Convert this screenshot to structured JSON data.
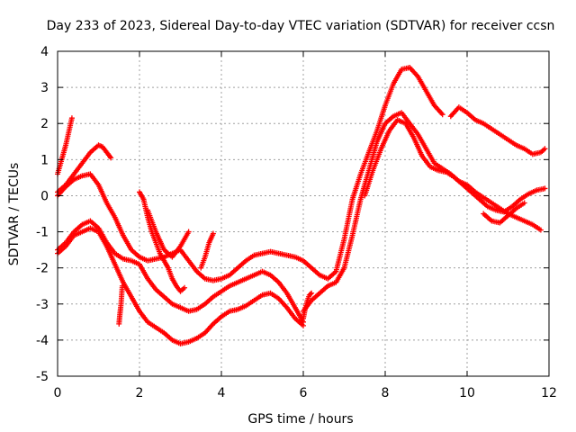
{
  "chart_data": {
    "type": "scatter",
    "title": "Day 233 of 2023, Sidereal Day-to-day VTEC variation (SDTVAR) for receiver ccsn",
    "xlabel": "GPS time / hours",
    "ylabel": "SDTVAR / TECUs",
    "xlim": [
      0,
      12
    ],
    "ylim": [
      -5,
      4
    ],
    "xticks": [
      0,
      2,
      4,
      6,
      8,
      10,
      12
    ],
    "yticks": [
      -5,
      -4,
      -3,
      -2,
      -1,
      0,
      1,
      2,
      3,
      4
    ],
    "grid": true,
    "marker": "plus",
    "color": "#ff0000",
    "series": [
      {
        "name": "trace-1",
        "x": [
          0.0,
          0.1,
          0.2,
          0.3,
          0.35
        ],
        "y": [
          0.6,
          1.0,
          1.4,
          1.9,
          2.15
        ]
      },
      {
        "name": "trace-2",
        "x": [
          0.0,
          0.2,
          0.4,
          0.6,
          0.8,
          1.0,
          1.1,
          1.2,
          1.3
        ],
        "y": [
          0.1,
          0.3,
          0.6,
          0.9,
          1.2,
          1.4,
          1.35,
          1.2,
          1.05
        ]
      },
      {
        "name": "trace-3",
        "x": [
          0.0,
          0.2,
          0.4,
          0.6,
          0.8,
          1.0,
          1.2,
          1.4,
          1.6,
          1.8,
          2.0,
          2.2,
          2.4,
          2.6,
          2.8,
          3.0,
          3.2,
          3.4,
          3.6,
          3.8,
          4.0,
          4.2,
          4.4,
          4.6,
          4.8,
          5.0,
          5.2,
          5.4,
          5.6,
          5.8,
          6.0,
          6.2,
          6.4,
          6.6,
          6.8,
          7.0,
          7.2,
          7.4,
          7.6,
          7.8,
          8.0,
          8.2,
          8.4,
          8.6,
          8.8,
          9.0,
          9.2,
          9.4
        ],
        "y": [
          0.0,
          0.25,
          0.45,
          0.55,
          0.6,
          0.3,
          -0.2,
          -0.6,
          -1.1,
          -1.5,
          -1.7,
          -1.8,
          -1.75,
          -1.7,
          -1.6,
          -1.5,
          -1.8,
          -2.1,
          -2.3,
          -2.35,
          -2.3,
          -2.2,
          -2.0,
          -1.8,
          -1.65,
          -1.6,
          -1.55,
          -1.6,
          -1.65,
          -1.7,
          -1.8,
          -2.0,
          -2.2,
          -2.3,
          -2.1,
          -1.2,
          -0.1,
          0.6,
          1.2,
          1.8,
          2.5,
          3.1,
          3.5,
          3.55,
          3.3,
          2.9,
          2.5,
          2.25
        ]
      },
      {
        "name": "trace-4",
        "x": [
          0.0,
          0.2,
          0.4,
          0.6,
          0.8,
          1.0,
          1.2,
          1.4,
          1.6,
          1.8,
          2.0,
          2.2,
          2.4,
          2.6,
          2.8,
          3.0,
          3.2,
          3.4,
          3.6,
          3.8,
          4.0,
          4.2,
          4.4,
          4.6,
          4.8,
          5.0,
          5.2,
          5.4,
          5.6,
          5.8,
          6.0
        ],
        "y": [
          -1.5,
          -1.3,
          -1.0,
          -0.8,
          -0.7,
          -0.9,
          -1.3,
          -1.6,
          -1.75,
          -1.8,
          -1.9,
          -2.3,
          -2.6,
          -2.8,
          -3.0,
          -3.1,
          -3.2,
          -3.15,
          -3.0,
          -2.8,
          -2.65,
          -2.5,
          -2.4,
          -2.3,
          -2.2,
          -2.1,
          -2.2,
          -2.4,
          -2.7,
          -3.1,
          -3.5
        ]
      },
      {
        "name": "trace-5",
        "x": [
          0.0,
          0.2,
          0.4,
          0.6,
          0.8,
          1.0,
          1.2,
          1.4,
          1.6,
          1.8,
          2.0,
          2.2,
          2.4,
          2.6,
          2.8,
          3.0,
          3.2,
          3.4,
          3.6,
          3.8,
          4.0,
          4.2,
          4.4,
          4.6,
          4.8,
          5.0,
          5.2,
          5.4,
          5.6,
          5.8,
          6.0
        ],
        "y": [
          -1.6,
          -1.4,
          -1.1,
          -1.0,
          -0.9,
          -1.0,
          -1.4,
          -1.9,
          -2.4,
          -2.8,
          -3.2,
          -3.5,
          -3.65,
          -3.8,
          -4.0,
          -4.1,
          -4.05,
          -3.95,
          -3.8,
          -3.55,
          -3.35,
          -3.2,
          -3.15,
          -3.05,
          -2.9,
          -2.75,
          -2.7,
          -2.85,
          -3.1,
          -3.4,
          -3.6
        ]
      },
      {
        "name": "trace-6",
        "x": [
          1.5,
          1.52,
          1.55,
          1.58
        ],
        "y": [
          -3.55,
          -3.3,
          -3.0,
          -2.5
        ]
      },
      {
        "name": "trace-7",
        "x": [
          2.0,
          2.1,
          2.2,
          2.3,
          2.4,
          2.5,
          2.6,
          2.7,
          2.8,
          2.9,
          3.0,
          3.1
        ],
        "y": [
          0.1,
          -0.1,
          -0.6,
          -1.0,
          -1.3,
          -1.6,
          -1.8,
          -2.0,
          -2.3,
          -2.5,
          -2.65,
          -2.55
        ]
      },
      {
        "name": "trace-8",
        "x": [
          2.2,
          2.4,
          2.6,
          2.8,
          3.0,
          3.2
        ],
        "y": [
          -0.4,
          -1.0,
          -1.5,
          -1.7,
          -1.4,
          -1.0
        ]
      },
      {
        "name": "trace-9",
        "x": [
          3.5,
          3.6,
          3.7,
          3.8
        ],
        "y": [
          -2.0,
          -1.7,
          -1.3,
          -1.05
        ]
      },
      {
        "name": "trace-10",
        "x": [
          6.0,
          6.2,
          6.4,
          6.6,
          6.8,
          7.0,
          7.2,
          7.4,
          7.6,
          7.8,
          8.0,
          8.2,
          8.4,
          8.6,
          8.8,
          9.0,
          9.2,
          9.4,
          9.6,
          9.8,
          10.0,
          10.2,
          10.4,
          10.6,
          10.8,
          11.0,
          11.2,
          11.4,
          11.6,
          11.8
        ],
        "y": [
          -3.2,
          -2.9,
          -2.7,
          -2.5,
          -2.4,
          -2.0,
          -1.1,
          -0.1,
          0.7,
          1.5,
          2.0,
          2.2,
          2.3,
          2.0,
          1.7,
          1.3,
          0.9,
          0.75,
          0.6,
          0.4,
          0.3,
          0.1,
          -0.05,
          -0.2,
          -0.35,
          -0.5,
          -0.6,
          -0.7,
          -0.8,
          -0.95
        ]
      },
      {
        "name": "trace-11",
        "x": [
          7.5,
          7.7,
          7.9,
          8.1,
          8.3,
          8.5,
          8.7,
          8.9,
          9.1,
          9.3,
          9.5,
          9.7,
          9.9,
          10.1,
          10.3,
          10.5,
          10.7,
          10.9,
          11.1,
          11.3,
          11.5,
          11.7,
          11.9
        ],
        "y": [
          0.0,
          0.7,
          1.3,
          1.8,
          2.1,
          2.0,
          1.6,
          1.1,
          0.8,
          0.7,
          0.65,
          0.5,
          0.3,
          0.1,
          -0.1,
          -0.3,
          -0.4,
          -0.45,
          -0.3,
          -0.1,
          0.05,
          0.15,
          0.2
        ]
      },
      {
        "name": "trace-12",
        "x": [
          9.6,
          9.8,
          10.0,
          10.2,
          10.4,
          10.6,
          10.8,
          11.0,
          11.2,
          11.4,
          11.6,
          11.8,
          11.9
        ],
        "y": [
          2.2,
          2.45,
          2.3,
          2.1,
          2.0,
          1.85,
          1.7,
          1.55,
          1.4,
          1.3,
          1.15,
          1.2,
          1.3
        ]
      },
      {
        "name": "trace-13",
        "x": [
          10.4,
          10.6,
          10.8,
          11.0,
          11.2,
          11.4
        ],
        "y": [
          -0.5,
          -0.7,
          -0.75,
          -0.55,
          -0.35,
          -0.2
        ]
      },
      {
        "name": "trace-14",
        "x": [
          6.0,
          6.05,
          6.1,
          6.15,
          6.2
        ],
        "y": [
          -3.4,
          -3.1,
          -2.9,
          -2.75,
          -2.7
        ]
      }
    ]
  }
}
